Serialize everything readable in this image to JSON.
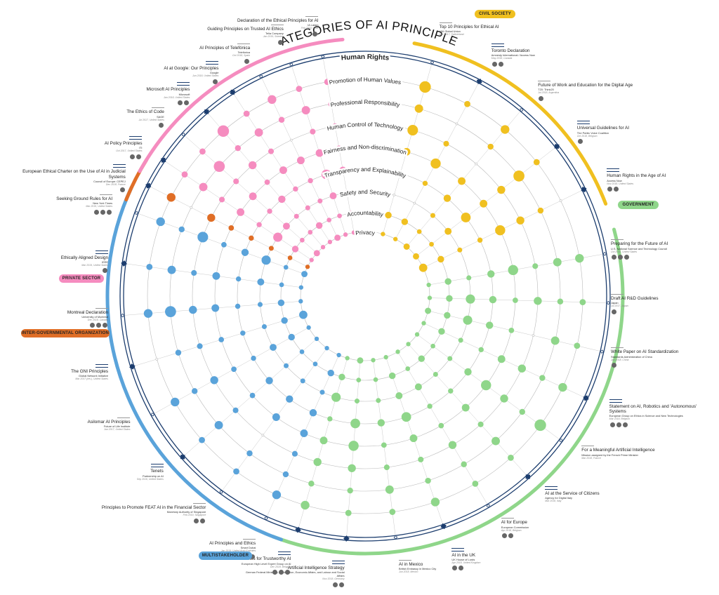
{
  "title": "CATEGORIES OF AI PRINCIPLES",
  "colors": {
    "ring": "#1c3d6e",
    "civil": "#f0c020",
    "government": "#8fd68a",
    "multi": "#5aa3da",
    "intergov": "#e06e26",
    "private": "#f58cbf"
  },
  "categories": [
    "Human Rights",
    "Promotion of Human Values",
    "Professional Responsibility",
    "Human Control of Technology",
    "Fairness and Non-discrimination",
    "Transparency and Explainability",
    "Safety and Security",
    "Accountability",
    "Privacy"
  ],
  "sectors": [
    {
      "key": "civil",
      "label": "CIVIL SOCIETY",
      "color": "#f0c020"
    },
    {
      "key": "government",
      "label": "GOVERNMENT",
      "color": "#8fd68a"
    },
    {
      "key": "multi",
      "label": "MULTISTAKEHOLDER",
      "color": "#5aa3da"
    },
    {
      "key": "intergov",
      "label": "INTER-GOVERNMENTAL ORGANIZATION",
      "color": "#e06e26"
    },
    {
      "key": "private",
      "label": "PRIVATE SECTOR",
      "color": "#f58cbf"
    }
  ],
  "documents": [
    {
      "sector": "civil",
      "title": "Top 10 Principles for Ethical AI",
      "org": "UNI Global Union",
      "date": "Dec 2017, Switzerland",
      "icons": 0,
      "level": [
        2,
        3,
        2,
        3,
        2,
        1,
        0,
        2,
        1
      ]
    },
    {
      "sector": "civil",
      "title": "Toronto Declaration",
      "org": "Amnesty International / Access Now",
      "date": "May 2018, Canada",
      "icons": 2,
      "hr": true,
      "level": [
        3,
        1,
        0,
        1,
        3,
        1,
        0,
        2,
        1
      ]
    },
    {
      "sector": "civil",
      "title": "Future of Work and Education for the Digital Age",
      "org": "T20: Think20",
      "date": "Jul 2018, Argentina",
      "icons": 1,
      "level": [
        1,
        2,
        1,
        0,
        2,
        2,
        1,
        1,
        2
      ]
    },
    {
      "sector": "civil",
      "title": "Universal Guidelines for AI",
      "org": "The Public Voice Coalition",
      "date": "Oct 2018, Belgium",
      "icons": 1,
      "hr": true,
      "level": [
        2,
        1,
        3,
        2,
        2,
        3,
        2,
        1,
        2
      ]
    },
    {
      "sector": "civil",
      "title": "Human Rights in the Age of AI",
      "org": "Access Now",
      "date": "Nov 2018, United States",
      "icons": 2,
      "hr": true,
      "level": [
        3,
        0,
        1,
        2,
        3,
        1,
        1,
        2,
        3
      ]
    },
    {
      "sector": "government",
      "title": "Preparing for the Future of AI",
      "org": "U.S. National Science and Technology Council",
      "date": "Oct 2016, United States",
      "icons": 3,
      "level": [
        1,
        2,
        2,
        1,
        3,
        2,
        1,
        2,
        1
      ]
    },
    {
      "sector": "government",
      "title": "Draft AI R&D Guidelines",
      "org": "Japan",
      "date": "Jul 2017, Japan",
      "icons": 1,
      "level": [
        0,
        1,
        1,
        2,
        1,
        2,
        3,
        2,
        1
      ]
    },
    {
      "sector": "government",
      "title": "White Paper on AI Standardization",
      "org": "Standards Administration of China",
      "date": "Jan 2018, China",
      "icons": 1,
      "level": [
        1,
        1,
        2,
        0,
        1,
        2,
        3,
        2,
        2
      ]
    },
    {
      "sector": "government",
      "title": "Statement on AI, Robotics and 'Autonomous' Systems",
      "org": "European Group on Ethics in Science and New Technologies",
      "date": "Mar 2018, Belgium",
      "icons": 3,
      "hr": true,
      "level": [
        3,
        2,
        1,
        2,
        2,
        1,
        1,
        2,
        1
      ]
    },
    {
      "sector": "government",
      "title": "For a Meaningful Artificial Intelligence",
      "org": "Mission assigned by the French Prime Minister",
      "date": "Mar 2018, France",
      "icons": 0,
      "level": [
        2,
        3,
        1,
        2,
        3,
        2,
        1,
        1,
        1
      ]
    },
    {
      "sector": "government",
      "title": "AI at the Service of Citizens",
      "org": "Agency for Digital Italy",
      "date": "Mar 2018, Italy",
      "icons": 0,
      "hr": true,
      "level": [
        1,
        1,
        2,
        1,
        2,
        1,
        1,
        2,
        1
      ]
    },
    {
      "sector": "government",
      "title": "AI for Europe",
      "org": "European Commission",
      "date": "Apr 2018, Belgium",
      "icons": 2,
      "level": [
        2,
        1,
        1,
        2,
        1,
        1,
        2,
        1,
        1
      ]
    },
    {
      "sector": "government",
      "title": "AI in the UK",
      "org": "UK House of Lords",
      "date": "Apr 2018, United Kingdom",
      "icons": 2,
      "hr": true,
      "level": [
        1,
        2,
        1,
        1,
        2,
        3,
        2,
        2,
        1
      ]
    },
    {
      "sector": "government",
      "title": "AI in Mexico",
      "org": "British Embassy in Mexico City",
      "date": "Jun 2018, Mexico",
      "icons": 0,
      "level": [
        0,
        1,
        2,
        1,
        1,
        2,
        1,
        1,
        1
      ]
    },
    {
      "sector": "government",
      "title": "Artificial Intelligence Strategy",
      "org": "German Federal Ministries of Education, Economic Affairs, and Labour and Social Affairs",
      "date": "Nov 2018, Germany",
      "icons": 2,
      "hr": true,
      "level": [
        2,
        1,
        1,
        2,
        3,
        3,
        1,
        1,
        2
      ]
    },
    {
      "sector": "government",
      "title": "Draft Ethics Guidelines for Trustworthy AI",
      "org": "European High Level Expert Group on AI",
      "date": "Dec 2018, Belgium",
      "icons": 3,
      "hr": true,
      "level": [
        3,
        2,
        1,
        2,
        2,
        1,
        3,
        2,
        1
      ]
    },
    {
      "sector": "multi",
      "title": "AI Principles and Ethics",
      "org": "Smart Dubai",
      "date": "Jan 2019, United Arab Emirates",
      "icons": 2,
      "level": [
        1,
        2,
        1,
        1,
        2,
        2,
        1,
        2,
        1
      ]
    },
    {
      "sector": "multi",
      "title": "Principles to Promote FEAT AI in the Financial Sector",
      "org": "Monetary Authority of Singapore",
      "date": "Feb 2019, Singapore",
      "icons": 2,
      "level": [
        0,
        1,
        1,
        0,
        2,
        2,
        1,
        1,
        1
      ]
    },
    {
      "sector": "multi",
      "title": "Tenets",
      "org": "Partnership on AI",
      "date": "Sep 2016, United States",
      "icons": 0,
      "hr": true,
      "level": [
        2,
        1,
        2,
        1,
        1,
        2,
        1,
        1,
        1
      ]
    },
    {
      "sector": "multi",
      "title": "Asilomar AI Principles",
      "org": "Future of Life Institute",
      "date": "Jan 2017, United States",
      "icons": 0,
      "level": [
        1,
        2,
        1,
        2,
        1,
        1,
        2,
        2,
        1
      ]
    },
    {
      "sector": "multi",
      "title": "The GNI Principles",
      "org": "Global Network Initiative",
      "date": "Mar 2017 (rev.), United States",
      "icons": 0,
      "hr": true,
      "level": [
        2,
        0,
        1,
        1,
        1,
        1,
        1,
        2,
        3
      ]
    },
    {
      "sector": "multi",
      "title": "Montreal Declaration",
      "org": "University of Montreal",
      "date": "Dec 2018, Canada",
      "icons": 3,
      "level": [
        1,
        2,
        3,
        2,
        2,
        1,
        1,
        2,
        1
      ]
    },
    {
      "sector": "multi",
      "title": "Ethically Aligned Design",
      "org": "IEEE",
      "date": "Mar 2019, United States",
      "icons": 1,
      "hr": true,
      "level": [
        3,
        1,
        2,
        1,
        2,
        1,
        2,
        1,
        1
      ]
    },
    {
      "sector": "multi",
      "title": "Seeking Ground Rules for AI",
      "org": "New York Times",
      "date": "Mar 2019, United States",
      "icons": 3,
      "level": [
        1,
        2,
        1,
        3,
        1,
        2,
        3,
        1,
        2
      ]
    },
    {
      "sector": "intergov",
      "title": "European Ethical Charter on the Use of AI in Judicial Systems",
      "org": "Council of Europe: CEPEJ",
      "date": "Dec 2018, France",
      "icons": 1,
      "hr": true,
      "level": [
        1,
        2,
        0,
        2,
        1,
        1,
        1,
        1,
        1
      ]
    },
    {
      "sector": "private",
      "title": "AI Policy Principles",
      "org": "ITI",
      "date": "Oct 2017, United States",
      "icons": 2,
      "hr": true,
      "level": [
        1,
        1,
        2,
        1,
        2,
        1,
        3,
        2,
        1
      ]
    },
    {
      "sector": "private",
      "title": "The Ethics of Code",
      "org": "SAGE",
      "date": "Jul 2017, United States",
      "icons": 1,
      "level": [
        2,
        1,
        3,
        1,
        2,
        1,
        2,
        1,
        2
      ]
    },
    {
      "sector": "private",
      "title": "Microsoft AI Principles",
      "org": "Microsoft",
      "date": "Jan 2018, United States",
      "icons": 2,
      "hr": true,
      "level": [
        2,
        3,
        1,
        2,
        1,
        2,
        1,
        1,
        1
      ]
    },
    {
      "sector": "private",
      "title": "AI at Google: Our Principles",
      "org": "Google",
      "date": "Jun 2018, United States",
      "icons": 1,
      "hr": true,
      "level": [
        1,
        1,
        2,
        1,
        2,
        1,
        1,
        2,
        1
      ]
    },
    {
      "sector": "private",
      "title": "AI Principles of Telefónica",
      "org": "Telefónica",
      "date": "Oct 2018, Spain",
      "icons": 1,
      "level": [
        1,
        2,
        1,
        0,
        2,
        1,
        1,
        1,
        2
      ]
    },
    {
      "sector": "private",
      "title": "Guiding Principles on Trusted AI Ethics",
      "org": "Telia Company",
      "date": "Jan 2019, Sweden",
      "icons": 1,
      "level": [
        1,
        1,
        2,
        1,
        2,
        3,
        2,
        1,
        1
      ]
    },
    {
      "sector": "private",
      "title": "Declaration of the Ethical Principles for AI",
      "org": "IA Latam",
      "date": "Feb 2019, Chile",
      "icons": 1,
      "level": [
        0,
        1,
        1,
        1,
        1,
        2,
        1,
        1,
        1
      ]
    }
  ]
}
